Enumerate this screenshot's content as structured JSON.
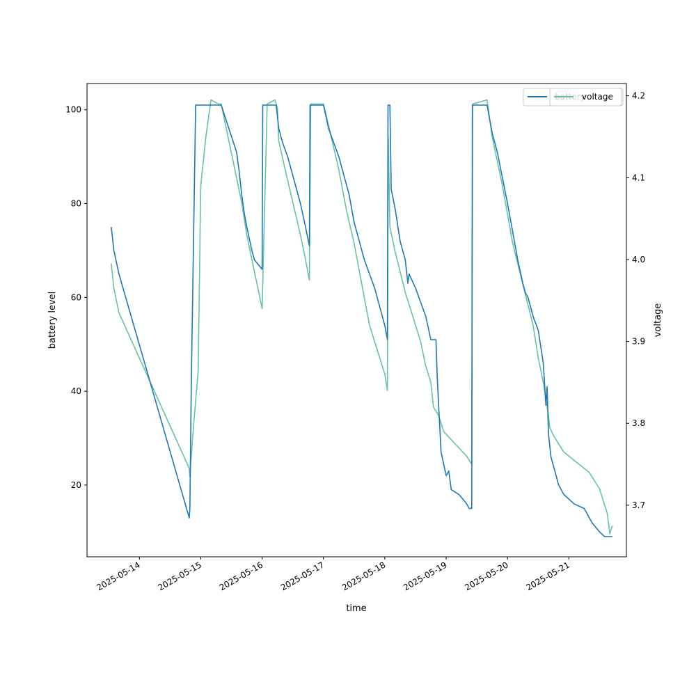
{
  "chart_data": {
    "type": "line",
    "xlabel": "time",
    "ylabel_left": "battery level",
    "ylabel_right": "voltage",
    "xlim": [
      "2025-05-13 03:30",
      "2025-05-21 22:30"
    ],
    "ylim_left": [
      4.7,
      105.6
    ],
    "ylim_right": [
      3.637,
      4.215
    ],
    "x_ticks": [
      "2025-05-14",
      "2025-05-15",
      "2025-05-16",
      "2025-05-17",
      "2025-05-18",
      "2025-05-19",
      "2025-05-20",
      "2025-05-21"
    ],
    "y_ticks_left": [
      20,
      40,
      60,
      80,
      100
    ],
    "y_ticks_right": [
      3.7,
      3.8,
      3.9,
      4.0,
      4.1,
      4.2
    ],
    "legend": {
      "position": "top-right",
      "entries": [
        "battery",
        "voltage"
      ]
    },
    "colors": {
      "battery": "#1f77b4",
      "voltage": "#66c2a5"
    },
    "series": [
      {
        "name": "battery",
        "axis": "left",
        "color": "#1f77b4",
        "points": [
          [
            "2025-05-13 13:00",
            75
          ],
          [
            "2025-05-13 14:00",
            70
          ],
          [
            "2025-05-13 16:00",
            65
          ],
          [
            "2025-05-14 19:30",
            13
          ],
          [
            "2025-05-14 19:45",
            15
          ],
          [
            "2025-05-14 20:20",
            43
          ],
          [
            "2025-05-14 22:00",
            101
          ],
          [
            "2025-05-15 08:00",
            101
          ],
          [
            "2025-05-15 14:00",
            91
          ],
          [
            "2025-05-15 15:00",
            87
          ],
          [
            "2025-05-15 16:00",
            82
          ],
          [
            "2025-05-15 17:00",
            78
          ],
          [
            "2025-05-15 18:00",
            75
          ],
          [
            "2025-05-15 20:00",
            70
          ],
          [
            "2025-05-15 21:00",
            68
          ],
          [
            "2025-05-16 00:00",
            66
          ],
          [
            "2025-05-16 00:15",
            101
          ],
          [
            "2025-05-16 05:30",
            101
          ],
          [
            "2025-05-16 06:30",
            96
          ],
          [
            "2025-05-16 08:00",
            93
          ],
          [
            "2025-05-16 10:00",
            90
          ],
          [
            "2025-05-16 12:00",
            86
          ],
          [
            "2025-05-16 14:00",
            82
          ],
          [
            "2025-05-16 15:00",
            80
          ],
          [
            "2025-05-16 17:00",
            75
          ],
          [
            "2025-05-16 18:30",
            71
          ],
          [
            "2025-05-16 18:45",
            101
          ],
          [
            "2025-05-17 00:00",
            101
          ],
          [
            "2025-05-17 02:00",
            96
          ],
          [
            "2025-05-17 04:00",
            93
          ],
          [
            "2025-05-17 06:00",
            90
          ],
          [
            "2025-05-17 08:00",
            86
          ],
          [
            "2025-05-17 10:00",
            82
          ],
          [
            "2025-05-17 12:00",
            76
          ],
          [
            "2025-05-17 14:00",
            72
          ],
          [
            "2025-05-17 16:00",
            68
          ],
          [
            "2025-05-17 18:00",
            65
          ],
          [
            "2025-05-17 20:00",
            62
          ],
          [
            "2025-05-17 22:00",
            58
          ],
          [
            "2025-05-18 00:00",
            54
          ],
          [
            "2025-05-18 01:00",
            51
          ],
          [
            "2025-05-18 01:15",
            101
          ],
          [
            "2025-05-18 02:00",
            101
          ],
          [
            "2025-05-18 02:30",
            83
          ],
          [
            "2025-05-18 04:00",
            79
          ],
          [
            "2025-05-18 06:00",
            72
          ],
          [
            "2025-05-18 08:00",
            68
          ],
          [
            "2025-05-18 09:00",
            63
          ],
          [
            "2025-05-18 09:30",
            65
          ],
          [
            "2025-05-18 12:00",
            62
          ],
          [
            "2025-05-18 14:00",
            59
          ],
          [
            "2025-05-18 16:00",
            56
          ],
          [
            "2025-05-18 18:00",
            51
          ],
          [
            "2025-05-18 20:00",
            51
          ],
          [
            "2025-05-18 20:30",
            43
          ],
          [
            "2025-05-18 22:00",
            27
          ],
          [
            "2025-05-19 00:00",
            22
          ],
          [
            "2025-05-19 01:00",
            23
          ],
          [
            "2025-05-19 02:00",
            19
          ],
          [
            "2025-05-19 05:00",
            18
          ],
          [
            "2025-05-19 08:00",
            16
          ],
          [
            "2025-05-19 09:00",
            15
          ],
          [
            "2025-05-19 10:00",
            15
          ],
          [
            "2025-05-19 10:15",
            101
          ],
          [
            "2025-05-19 16:00",
            101
          ],
          [
            "2025-05-19 18:00",
            95
          ],
          [
            "2025-05-19 20:00",
            91
          ],
          [
            "2025-05-20 00:00",
            80
          ],
          [
            "2025-05-20 02:00",
            74
          ],
          [
            "2025-05-20 04:00",
            68
          ],
          [
            "2025-05-20 06:00",
            63
          ],
          [
            "2025-05-20 07:00",
            61
          ],
          [
            "2025-05-20 08:00",
            60
          ],
          [
            "2025-05-20 10:00",
            56
          ],
          [
            "2025-05-20 12:00",
            53
          ],
          [
            "2025-05-20 14:00",
            46
          ],
          [
            "2025-05-20 15:00",
            37
          ],
          [
            "2025-05-20 15:30",
            41
          ],
          [
            "2025-05-20 16:00",
            31
          ],
          [
            "2025-05-20 17:00",
            26
          ],
          [
            "2025-05-20 18:00",
            24
          ],
          [
            "2025-05-20 20:00",
            20
          ],
          [
            "2025-05-20 22:00",
            18
          ],
          [
            "2025-05-21 02:00",
            16
          ],
          [
            "2025-05-21 06:00",
            15
          ],
          [
            "2025-05-21 09:00",
            12
          ],
          [
            "2025-05-21 12:00",
            10
          ],
          [
            "2025-05-21 14:00",
            9
          ],
          [
            "2025-05-21 17:00",
            9
          ]
        ]
      },
      {
        "name": "voltage",
        "axis": "right",
        "color": "#66c2a5",
        "points": [
          [
            "2025-05-13 13:00",
            3.995
          ],
          [
            "2025-05-13 14:00",
            3.965
          ],
          [
            "2025-05-13 16:00",
            3.935
          ],
          [
            "2025-05-14 19:30",
            3.745
          ],
          [
            "2025-05-14 19:45",
            3.735
          ],
          [
            "2025-05-14 21:00",
            3.79
          ],
          [
            "2025-05-14 23:00",
            3.865
          ],
          [
            "2025-05-15 00:00",
            4.09
          ],
          [
            "2025-05-15 02:00",
            4.15
          ],
          [
            "2025-05-15 04:00",
            4.195
          ],
          [
            "2025-05-15 07:00",
            4.19
          ],
          [
            "2025-05-15 08:00",
            4.19
          ],
          [
            "2025-05-15 12:00",
            4.13
          ],
          [
            "2025-05-15 16:00",
            4.07
          ],
          [
            "2025-05-15 18:00",
            4.03
          ],
          [
            "2025-05-15 20:00",
            4.0
          ],
          [
            "2025-05-15 22:00",
            3.97
          ],
          [
            "2025-05-16 00:00",
            3.94
          ],
          [
            "2025-05-16 02:00",
            4.19
          ],
          [
            "2025-05-16 05:00",
            4.195
          ],
          [
            "2025-05-16 06:00",
            4.185
          ],
          [
            "2025-05-16 06:30",
            4.145
          ],
          [
            "2025-05-16 09:00",
            4.11
          ],
          [
            "2025-05-16 12:00",
            4.07
          ],
          [
            "2025-05-16 15:00",
            4.03
          ],
          [
            "2025-05-16 17:00",
            4.0
          ],
          [
            "2025-05-16 18:30",
            3.975
          ],
          [
            "2025-05-16 19:00",
            4.19
          ],
          [
            "2025-05-17 00:00",
            4.19
          ],
          [
            "2025-05-17 03:00",
            4.15
          ],
          [
            "2025-05-17 06:00",
            4.11
          ],
          [
            "2025-05-17 09:00",
            4.06
          ],
          [
            "2025-05-17 12:00",
            4.02
          ],
          [
            "2025-05-17 15:00",
            3.97
          ],
          [
            "2025-05-17 18:00",
            3.92
          ],
          [
            "2025-05-17 20:00",
            3.9
          ],
          [
            "2025-05-17 22:00",
            3.88
          ],
          [
            "2025-05-18 00:00",
            3.86
          ],
          [
            "2025-05-18 01:00",
            3.84
          ],
          [
            "2025-05-18 01:20",
            4.15
          ],
          [
            "2025-05-18 02:00",
            4.04
          ],
          [
            "2025-05-18 04:00",
            4.01
          ],
          [
            "2025-05-18 08:00",
            3.96
          ],
          [
            "2025-05-18 12:00",
            3.92
          ],
          [
            "2025-05-18 14:00",
            3.9
          ],
          [
            "2025-05-18 16:00",
            3.87
          ],
          [
            "2025-05-18 18:00",
            3.85
          ],
          [
            "2025-05-18 19:00",
            3.82
          ],
          [
            "2025-05-18 21:00",
            3.81
          ],
          [
            "2025-05-18 23:00",
            3.79
          ],
          [
            "2025-05-19 02:00",
            3.78
          ],
          [
            "2025-05-19 05:00",
            3.77
          ],
          [
            "2025-05-19 08:00",
            3.76
          ],
          [
            "2025-05-19 09:00",
            3.755
          ],
          [
            "2025-05-19 10:00",
            3.75
          ],
          [
            "2025-05-19 10:20",
            4.19
          ],
          [
            "2025-05-19 16:00",
            4.195
          ],
          [
            "2025-05-19 18:00",
            4.15
          ],
          [
            "2025-05-19 22:00",
            4.09
          ],
          [
            "2025-05-20 02:00",
            4.02
          ],
          [
            "2025-05-20 06:00",
            3.97
          ],
          [
            "2025-05-20 10:00",
            3.92
          ],
          [
            "2025-05-20 12:00",
            3.88
          ],
          [
            "2025-05-20 14:00",
            3.85
          ],
          [
            "2025-05-20 16:00",
            3.81
          ],
          [
            "2025-05-20 16:30",
            3.795
          ],
          [
            "2025-05-20 18:00",
            3.785
          ],
          [
            "2025-05-20 22:00",
            3.765
          ],
          [
            "2025-05-21 04:00",
            3.75
          ],
          [
            "2025-05-21 08:00",
            3.74
          ],
          [
            "2025-05-21 12:00",
            3.72
          ],
          [
            "2025-05-21 15:00",
            3.69
          ],
          [
            "2025-05-21 16:00",
            3.665
          ],
          [
            "2025-05-21 17:00",
            3.675
          ]
        ]
      }
    ]
  }
}
